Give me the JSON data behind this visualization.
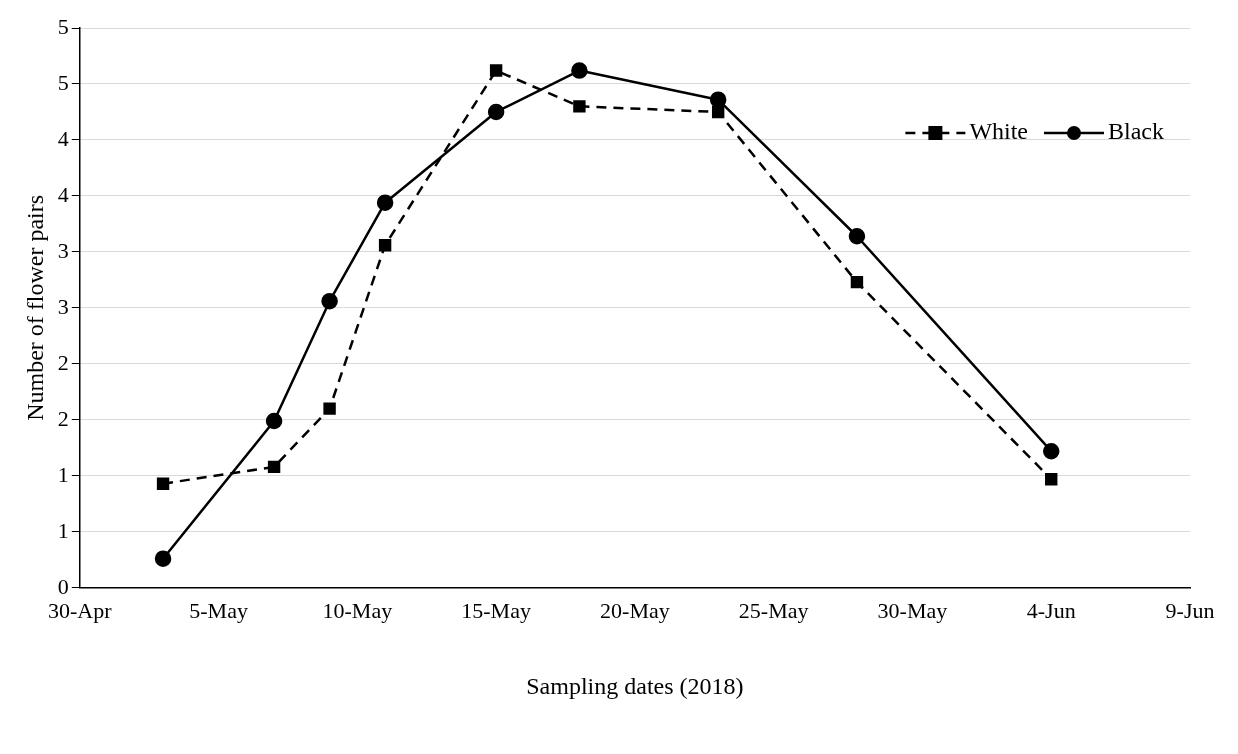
{
  "chart_data": {
    "type": "line",
    "xlabel": "Sampling dates (2018)",
    "ylabel": "Number of flower pairs",
    "x": [
      "2018-05-03",
      "2018-05-07",
      "2018-05-09",
      "2018-05-11",
      "2018-05-15",
      "2018-05-18",
      "2018-05-23",
      "2018-05-28",
      "2018-06-04"
    ],
    "series": [
      {
        "name": "White",
        "color": "#000000",
        "line_style": "dashed",
        "marker": "square",
        "values": [
          0.93,
          1.08,
          1.6,
          3.06,
          4.62,
          4.3,
          4.25,
          2.73,
          0.97
        ]
      },
      {
        "name": "Black",
        "color": "#000000",
        "line_style": "solid",
        "marker": "circle",
        "values": [
          0.26,
          1.49,
          2.56,
          3.44,
          4.25,
          4.62,
          4.36,
          3.14,
          1.22
        ]
      }
    ],
    "xlim": [
      "2018-04-30",
      "2018-06-09"
    ],
    "xticks": [
      {
        "value": "2018-04-30",
        "label": "30-Apr"
      },
      {
        "value": "2018-05-05",
        "label": "5-May"
      },
      {
        "value": "2018-05-10",
        "label": "10-May"
      },
      {
        "value": "2018-05-15",
        "label": "15-May"
      },
      {
        "value": "2018-05-20",
        "label": "20-May"
      },
      {
        "value": "2018-05-25",
        "label": "25-May"
      },
      {
        "value": "2018-05-30",
        "label": "30-May"
      },
      {
        "value": "2018-06-04",
        "label": "4-Jun"
      },
      {
        "value": "2018-06-09",
        "label": "9-Jun"
      }
    ],
    "ylim": [
      0,
      5
    ],
    "yticks": [
      0,
      {
        "value": 0.5,
        "label": "1"
      },
      1,
      {
        "value": 1.5,
        "label": "2"
      },
      2,
      {
        "value": 2.5,
        "label": "3"
      },
      3,
      {
        "value": 3.5,
        "label": "4"
      },
      4,
      {
        "value": 4.5,
        "label": "5"
      },
      5
    ],
    "grid": "y",
    "legend": "top right"
  }
}
